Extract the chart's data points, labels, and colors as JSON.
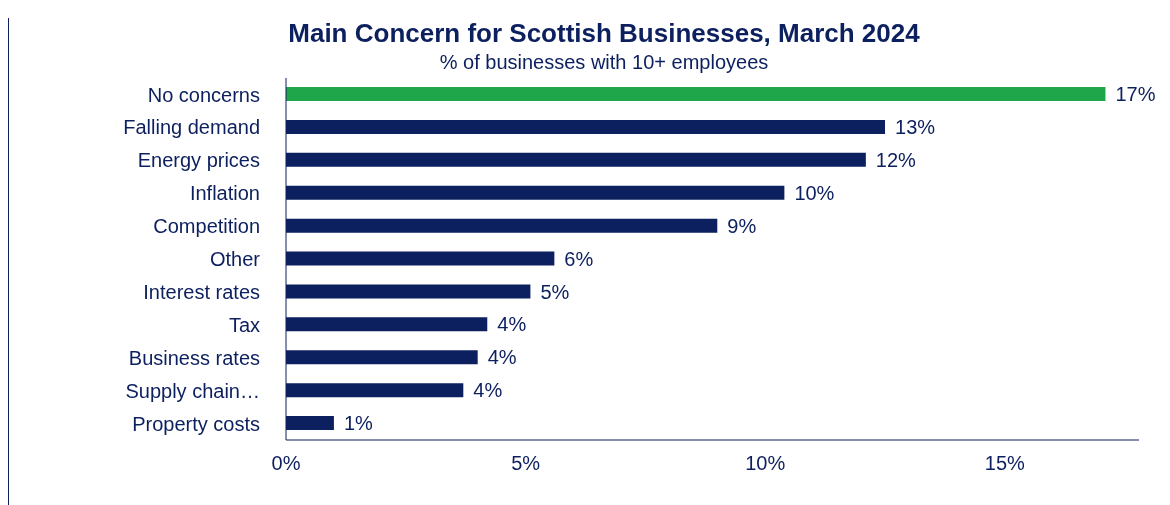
{
  "chart_data": {
    "type": "bar",
    "orientation": "horizontal",
    "title": "Main Concern for Scottish Businesses, March 2024",
    "subtitle": "% of businesses with 10+ employees",
    "categories": [
      "No concerns",
      "Falling demand",
      "Energy prices",
      "Inflation",
      "Competition",
      "Other",
      "Interest rates ",
      "Tax",
      "Business rates",
      "Supply chain…",
      "Property costs"
    ],
    "values": [
      17.1,
      12.5,
      12.1,
      10.4,
      9.0,
      5.6,
      5.1,
      4.2,
      4.0,
      3.7,
      1.0
    ],
    "colors": [
      "#1fa64a",
      "#0c1f5e",
      "#0c1f5e",
      "#0c1f5e",
      "#0c1f5e",
      "#0c1f5e",
      "#0c1f5e",
      "#0c1f5e",
      "#0c1f5e",
      "#0c1f5e",
      "#0c1f5e"
    ],
    "value_labels": [
      "17%",
      "13%",
      "12%",
      "10%",
      "9%",
      "6%",
      "5%",
      "4%",
      "4%",
      "4%",
      "1%"
    ],
    "xlim": [
      0,
      17.8
    ],
    "xticks": [
      {
        "value": 0,
        "label": "0%"
      },
      {
        "value": 5,
        "label": "5%"
      },
      {
        "value": 10,
        "label": "10%"
      },
      {
        "value": 15,
        "label": "15%"
      }
    ],
    "grid": false
  }
}
